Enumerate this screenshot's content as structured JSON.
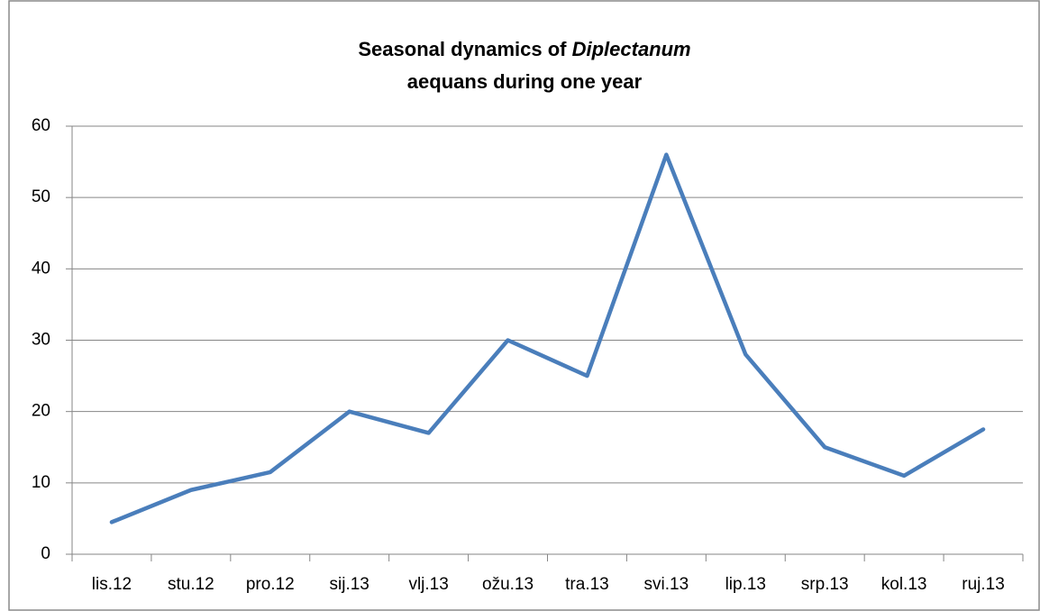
{
  "chart_data": {
    "type": "line",
    "title": [
      "Seasonal dynamics of",
      "Diplectanum",
      "aequans during one year"
    ],
    "categories": [
      "lis.12",
      "stu.12",
      "pro.12",
      "sij.13",
      "vlj.13",
      "ožu.13",
      "tra.13",
      "svi.13",
      "lip.13",
      "srp.13",
      "kol.13",
      "ruj.13"
    ],
    "series": [
      {
        "color": "#4a7ebb",
        "values": [
          4.5,
          9,
          11.5,
          20,
          17,
          30,
          25,
          56,
          28,
          15,
          11,
          17.5
        ]
      }
    ],
    "ylim": [
      0,
      60
    ],
    "yticks": [
      0,
      10,
      20,
      30,
      40,
      50,
      60
    ],
    "grid": true
  }
}
